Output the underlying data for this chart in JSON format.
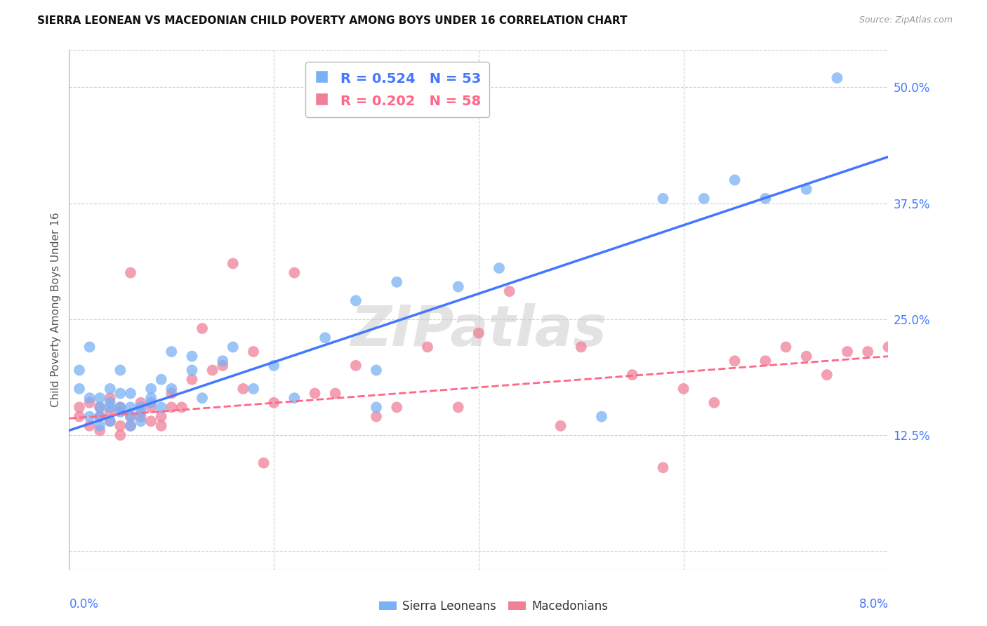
{
  "title": "SIERRA LEONEAN VS MACEDONIAN CHILD POVERTY AMONG BOYS UNDER 16 CORRELATION CHART",
  "source": "Source: ZipAtlas.com",
  "ylabel": "Child Poverty Among Boys Under 16",
  "x_label_bottom_left": "0.0%",
  "x_label_bottom_right": "8.0%",
  "y_ticks": [
    0.0,
    0.125,
    0.25,
    0.375,
    0.5
  ],
  "y_tick_labels": [
    "",
    "12.5%",
    "25.0%",
    "37.5%",
    "50.0%"
  ],
  "xlim": [
    0.0,
    0.08
  ],
  "ylim": [
    -0.02,
    0.54
  ],
  "watermark": "ZIPatlas",
  "sierra_color": "#7ab0f5",
  "macedonian_color": "#f08098",
  "sierra_line_color": "#4477ff",
  "macedonian_line_color": "#ff6688",
  "background_color": "#ffffff",
  "grid_color": "#d0d0d0",
  "sierra_R": "0.524",
  "sierra_N": "53",
  "macedonian_R": "0.202",
  "macedonian_N": "58",
  "sierra_x": [
    0.001,
    0.001,
    0.002,
    0.002,
    0.002,
    0.003,
    0.003,
    0.003,
    0.003,
    0.004,
    0.004,
    0.004,
    0.004,
    0.005,
    0.005,
    0.005,
    0.005,
    0.006,
    0.006,
    0.006,
    0.006,
    0.007,
    0.007,
    0.007,
    0.008,
    0.008,
    0.008,
    0.009,
    0.009,
    0.01,
    0.01,
    0.012,
    0.012,
    0.013,
    0.015,
    0.016,
    0.018,
    0.02,
    0.022,
    0.025,
    0.028,
    0.03,
    0.03,
    0.032,
    0.038,
    0.042,
    0.052,
    0.058,
    0.062,
    0.065,
    0.068,
    0.072,
    0.075
  ],
  "sierra_y": [
    0.195,
    0.175,
    0.22,
    0.165,
    0.145,
    0.155,
    0.145,
    0.165,
    0.135,
    0.175,
    0.155,
    0.14,
    0.16,
    0.155,
    0.15,
    0.17,
    0.195,
    0.17,
    0.155,
    0.145,
    0.135,
    0.155,
    0.14,
    0.15,
    0.16,
    0.165,
    0.175,
    0.185,
    0.155,
    0.215,
    0.175,
    0.21,
    0.195,
    0.165,
    0.205,
    0.22,
    0.175,
    0.2,
    0.165,
    0.23,
    0.27,
    0.195,
    0.155,
    0.29,
    0.285,
    0.305,
    0.145,
    0.38,
    0.38,
    0.4,
    0.38,
    0.39,
    0.51
  ],
  "macedonian_x": [
    0.001,
    0.001,
    0.002,
    0.002,
    0.003,
    0.003,
    0.003,
    0.004,
    0.004,
    0.004,
    0.005,
    0.005,
    0.005,
    0.006,
    0.006,
    0.006,
    0.007,
    0.007,
    0.008,
    0.008,
    0.009,
    0.009,
    0.01,
    0.01,
    0.011,
    0.012,
    0.013,
    0.014,
    0.015,
    0.016,
    0.017,
    0.018,
    0.019,
    0.02,
    0.022,
    0.024,
    0.026,
    0.028,
    0.03,
    0.032,
    0.035,
    0.038,
    0.04,
    0.043,
    0.048,
    0.05,
    0.055,
    0.058,
    0.06,
    0.063,
    0.065,
    0.068,
    0.07,
    0.072,
    0.074,
    0.076,
    0.078,
    0.08
  ],
  "macedonian_y": [
    0.155,
    0.145,
    0.135,
    0.16,
    0.13,
    0.145,
    0.155,
    0.14,
    0.15,
    0.165,
    0.135,
    0.155,
    0.125,
    0.145,
    0.135,
    0.3,
    0.145,
    0.16,
    0.14,
    0.155,
    0.145,
    0.135,
    0.155,
    0.17,
    0.155,
    0.185,
    0.24,
    0.195,
    0.2,
    0.31,
    0.175,
    0.215,
    0.095,
    0.16,
    0.3,
    0.17,
    0.17,
    0.2,
    0.145,
    0.155,
    0.22,
    0.155,
    0.235,
    0.28,
    0.135,
    0.22,
    0.19,
    0.09,
    0.175,
    0.16,
    0.205,
    0.205,
    0.22,
    0.21,
    0.19,
    0.215,
    0.215,
    0.22
  ],
  "sierra_line_x0": 0.0,
  "sierra_line_y0": 0.13,
  "sierra_line_x1": 0.08,
  "sierra_line_y1": 0.425,
  "macedonian_line_x0": 0.0,
  "macedonian_line_y0": 0.143,
  "macedonian_line_x1": 0.08,
  "macedonian_line_y1": 0.21
}
